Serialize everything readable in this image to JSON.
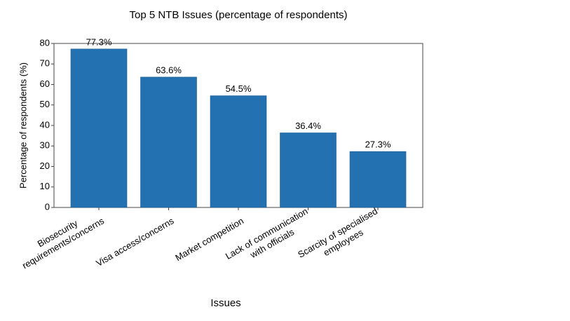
{
  "chart_data": {
    "type": "bar",
    "title": "Top 5 NTB Issues (percentage of respondents)",
    "x_label": "Issues",
    "y_label": "Percentage of  respondents (%)",
    "categories": [
      "Biosecurity\nrequirements/concerns",
      "Visa access/concerns",
      "Market competition",
      "Lack of communication\nwith officials",
      "Scarcity of specialised\nemployees"
    ],
    "values": [
      77.3,
      63.6,
      54.5,
      36.4,
      27.3
    ],
    "value_labels": [
      "77.3%",
      "63.6%",
      "54.5%",
      "36.4%",
      "27.3%"
    ],
    "color": "#2371b1",
    "ylim": [
      0,
      80
    ],
    "yticks": [
      0,
      10,
      20,
      30,
      40,
      50,
      60,
      70,
      80
    ]
  }
}
